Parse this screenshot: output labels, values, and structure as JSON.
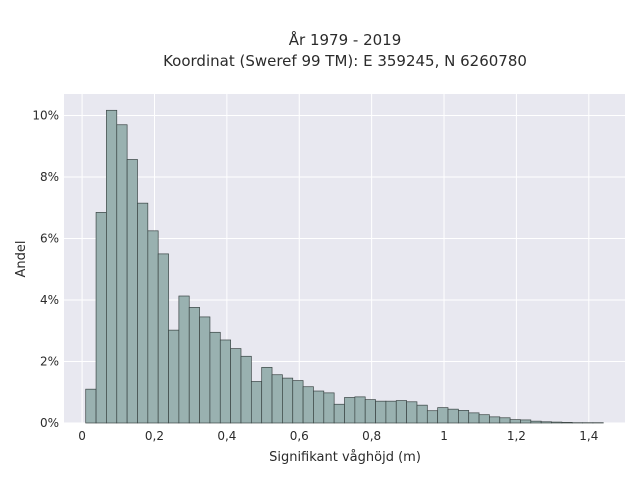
{
  "chart_data": {
    "type": "bar",
    "title_line1": "År 1979 - 2019",
    "title_line2": "Koordinat (Sweref 99 TM): E 359245, N 6260780",
    "xlabel": "Signifikant våghöjd (m)",
    "ylabel": "Andel",
    "xlim": [
      -0.05,
      1.5
    ],
    "ylim": [
      0,
      0.107
    ],
    "grid": true,
    "bin_width": 0.0286,
    "bin_start": 0.01,
    "x_ticks": [
      {
        "value": 0,
        "label": "0"
      },
      {
        "value": 0.2,
        "label": "0,2"
      },
      {
        "value": 0.4,
        "label": "0,4"
      },
      {
        "value": 0.6,
        "label": "0,6"
      },
      {
        "value": 0.8,
        "label": "0,8"
      },
      {
        "value": 1.0,
        "label": "1"
      },
      {
        "value": 1.2,
        "label": "1,2"
      },
      {
        "value": 1.4,
        "label": "1,4"
      }
    ],
    "y_ticks": [
      {
        "value": 0,
        "label": "0%"
      },
      {
        "value": 0.02,
        "label": "2%"
      },
      {
        "value": 0.04,
        "label": "4%"
      },
      {
        "value": 0.06,
        "label": "6%"
      },
      {
        "value": 0.08,
        "label": "8%"
      },
      {
        "value": 0.1,
        "label": "10%"
      }
    ],
    "values": [
      0.011,
      0.0685,
      0.1017,
      0.097,
      0.0857,
      0.0715,
      0.0625,
      0.055,
      0.0302,
      0.0413,
      0.0376,
      0.0345,
      0.0295,
      0.027,
      0.0242,
      0.0217,
      0.0135,
      0.0181,
      0.0157,
      0.0146,
      0.0138,
      0.0118,
      0.0104,
      0.0098,
      0.0061,
      0.0083,
      0.0085,
      0.0076,
      0.0071,
      0.0071,
      0.0073,
      0.0069,
      0.0058,
      0.004,
      0.005,
      0.0045,
      0.0041,
      0.0033,
      0.0027,
      0.002,
      0.0017,
      0.0011,
      0.001,
      0.0006,
      0.0004,
      0.0003,
      0.0002,
      0.0001,
      0.0001,
      0.0001
    ]
  }
}
